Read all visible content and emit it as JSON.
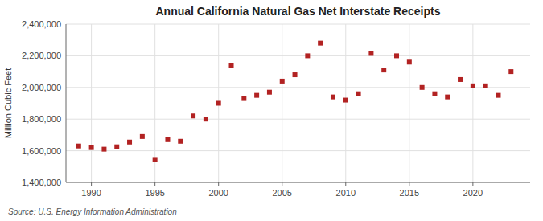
{
  "chart_data": {
    "type": "scatter",
    "title": "Annual California Natural Gas Net Interstate Receipts",
    "ylabel": "Million Cubic Feet",
    "annotations": [
      "Source: U.S. Energy Information Administration"
    ],
    "x": [
      1989,
      1990,
      1991,
      1992,
      1993,
      1994,
      1995,
      1996,
      1997,
      1998,
      1999,
      2000,
      2001,
      2002,
      2003,
      2004,
      2005,
      2006,
      2007,
      2008,
      2009,
      2010,
      2011,
      2012,
      2013,
      2014,
      2015,
      2016,
      2017,
      2018,
      2019,
      2020,
      2021,
      2022,
      2023
    ],
    "values": [
      1630000,
      1620000,
      1610000,
      1625000,
      1655000,
      1690000,
      1545000,
      1670000,
      1660000,
      1820000,
      1800000,
      1900000,
      2140000,
      1930000,
      1950000,
      1970000,
      2040000,
      2080000,
      2200000,
      2280000,
      1940000,
      1920000,
      1960000,
      2215000,
      2110000,
      2200000,
      2160000,
      2000000,
      1960000,
      1940000,
      2050000,
      2010000,
      2010000,
      1950000,
      2100000
    ],
    "color": "#b22222",
    "marker": "square",
    "xlim": [
      1988,
      2024.5
    ],
    "ylim": [
      1400000,
      2400000
    ],
    "xticks": [
      1990,
      1995,
      2000,
      2005,
      2010,
      2015,
      2020
    ],
    "yticks": [
      {
        "value": 1400000,
        "label": "1,400,000"
      },
      {
        "value": 1600000,
        "label": "1,600,000"
      },
      {
        "value": 1800000,
        "label": "1,800,000"
      },
      {
        "value": 2000000,
        "label": "2,000,000"
      },
      {
        "value": 2200000,
        "label": "2,200,000"
      },
      {
        "value": 2400000,
        "label": "2,400,000"
      }
    ],
    "grid": true
  }
}
